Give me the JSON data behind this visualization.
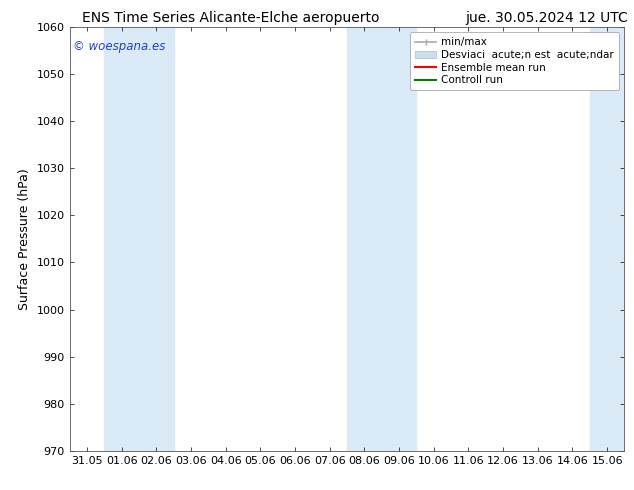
{
  "title_left": "ENS Time Series Alicante-Elche aeropuerto",
  "title_right": "jue. 30.05.2024 12 UTC",
  "ylabel": "Surface Pressure (hPa)",
  "ylim": [
    970,
    1060
  ],
  "yticks": [
    970,
    980,
    990,
    1000,
    1010,
    1020,
    1030,
    1040,
    1050,
    1060
  ],
  "x_labels": [
    "31.05",
    "01.06",
    "02.06",
    "03.06",
    "04.06",
    "05.06",
    "06.06",
    "07.06",
    "08.06",
    "09.06",
    "10.06",
    "11.06",
    "12.06",
    "13.06",
    "14.06",
    "15.06"
  ],
  "shaded_bands": [
    {
      "xmin": 1,
      "xmax": 3
    },
    {
      "xmin": 8,
      "xmax": 10
    },
    {
      "xmin": 15,
      "xmax": 16
    }
  ],
  "shade_color": "#daeaf7",
  "watermark": "© woespana.es",
  "watermark_color": "#2244bb",
  "legend_label_minmax": "min/max",
  "legend_label_std": "Desviaci  acute;n est  acute;ndar",
  "legend_label_ensemble": "Ensemble mean run",
  "legend_label_control": "Controll run",
  "legend_color_minmax": "#aaaaaa",
  "legend_color_std": "#ccddf0",
  "legend_color_ensemble": "red",
  "legend_color_control": "green",
  "bg_color": "#ffffff",
  "title_fontsize": 10,
  "tick_fontsize": 8,
  "ylabel_fontsize": 9,
  "legend_fontsize": 7.5
}
